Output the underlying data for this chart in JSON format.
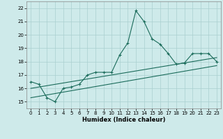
{
  "xlabel": "Humidex (Indice chaleur)",
  "bg_color": "#ceeaea",
  "grid_color": "#aacfcf",
  "line_color": "#1a6b5a",
  "xlim": [
    -0.5,
    23.5
  ],
  "ylim": [
    14.5,
    22.5
  ],
  "xticks": [
    0,
    1,
    2,
    3,
    4,
    5,
    6,
    7,
    8,
    9,
    10,
    11,
    12,
    13,
    14,
    15,
    16,
    17,
    18,
    19,
    20,
    21,
    22,
    23
  ],
  "yticks": [
    15,
    16,
    17,
    18,
    19,
    20,
    21,
    22
  ],
  "line1_x": [
    0,
    1,
    2,
    3,
    4,
    5,
    6,
    7,
    8,
    9,
    10,
    11,
    12,
    13,
    14,
    15,
    16,
    17,
    18,
    19,
    20,
    21,
    22,
    23
  ],
  "line1_y": [
    16.5,
    16.3,
    15.3,
    15.0,
    16.0,
    16.1,
    16.3,
    17.0,
    17.2,
    17.2,
    17.2,
    18.5,
    19.4,
    21.8,
    21.0,
    19.7,
    19.3,
    18.6,
    17.8,
    17.9,
    18.6,
    18.6,
    18.6,
    18.0
  ],
  "line2_x": [
    0,
    23
  ],
  "line2_y": [
    16.0,
    18.3
  ],
  "line3_x": [
    0,
    23
  ],
  "line3_y": [
    15.3,
    17.7
  ]
}
